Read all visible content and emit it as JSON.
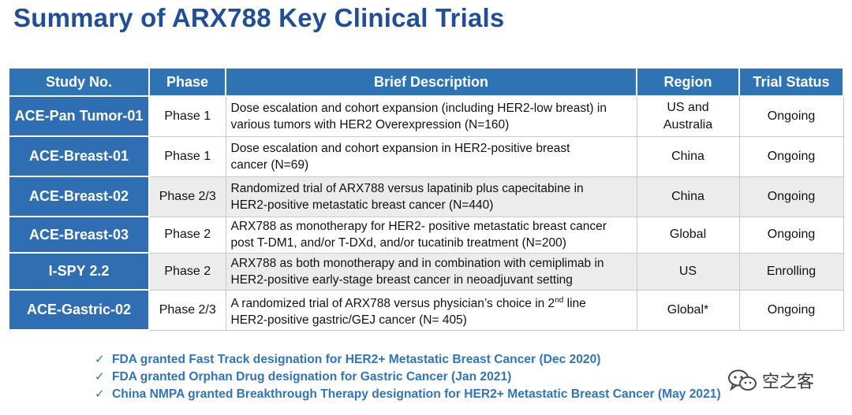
{
  "title": "Summary of ARX788 Key Clinical Trials",
  "table": {
    "headers": [
      "Study No.",
      "Phase",
      "Brief Description",
      "Region",
      "Trial Status"
    ],
    "rows": [
      {
        "study": "ACE-Pan Tumor-01",
        "phase": "Phase 1",
        "desc1": "Dose escalation and cohort expansion (including HER2-low breast) in",
        "desc2": "various tumors with HER2 Overexpression (N=160)",
        "region1": "US and",
        "region2": "Australia",
        "status": "Ongoing"
      },
      {
        "study": "ACE-Breast-01",
        "phase": "Phase 1",
        "desc1": "Dose escalation and cohort expansion in HER2-positive breast",
        "desc2": "cancer (N=69)",
        "region1": "China",
        "region2": "",
        "status": "Ongoing"
      },
      {
        "study": "ACE-Breast-02",
        "phase": "Phase 2/3",
        "desc1": "Randomized trial of ARX788 versus lapatinib plus capecitabine in",
        "desc2": "HER2-positive metastatic breast cancer (N=440)",
        "region1": "China",
        "region2": "",
        "status": "Ongoing"
      },
      {
        "study": "ACE-Breast-03",
        "phase": "Phase 2",
        "desc1": "ARX788 as monotherapy for HER2- positive metastatic breast cancer",
        "desc2": "post T-DM1, and/or T-DXd, and/or tucatinib treatment (N=200)",
        "region1": "Global",
        "region2": "",
        "status": "Ongoing"
      },
      {
        "study": "I-SPY 2.2",
        "phase": "Phase 2",
        "desc1": "ARX788 as both monotherapy and in combination with cemiplimab in",
        "desc2": "HER2-positive early-stage breast cancer in neoadjuvant setting",
        "region1": "US",
        "region2": "",
        "status": "Enrolling"
      },
      {
        "study": "ACE-Gastric-02",
        "phase": "Phase 2/3",
        "desc1a": "A randomized trial of ARX788 versus physician’s choice in 2",
        "desc1sup": "nd",
        "desc1b": " line",
        "desc2": "HER2-positive gastric/GEJ cancer  (N= 405)",
        "region1": "Global*",
        "region2": "",
        "status": "Ongoing"
      }
    ]
  },
  "notes": [
    "FDA granted Fast Track designation for HER2+ Metastatic Breast Cancer (Dec 2020)",
    "FDA granted Orphan Drug designation for Gastric Cancer (Jan 2021)",
    "China NMPA granted Breakthrough Therapy designation for HER2+ Metastatic Breast Cancer (May 2021)"
  ],
  "check_icon": "✓",
  "watermark": {
    "text": "空之客",
    "icon": "wechat-icon"
  }
}
